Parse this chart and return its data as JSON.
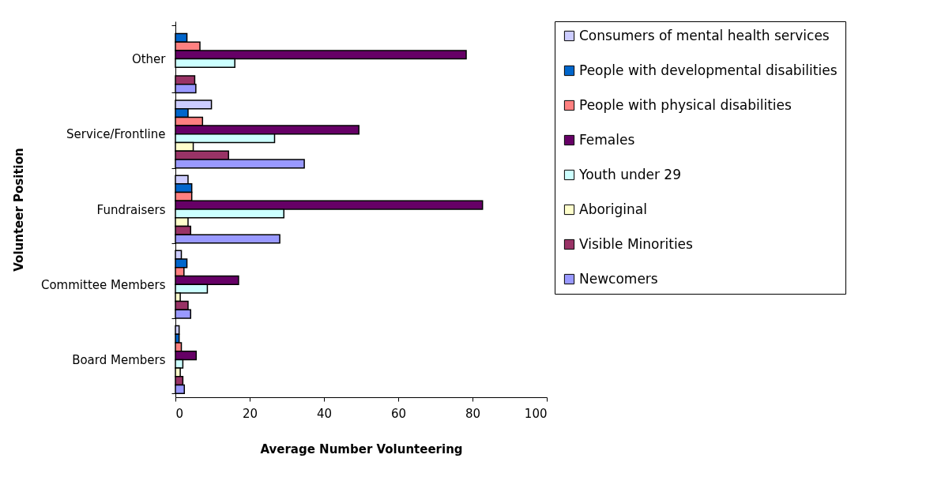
{
  "chart_data": {
    "type": "bar",
    "orientation": "horizontal",
    "xlabel": "Average Number Volunteering",
    "ylabel": "Volunteer Position",
    "categories": [
      "Other",
      "Service/Frontline",
      "Fundraisers",
      "Committee Members",
      "Board Members"
    ],
    "series": [
      {
        "name": "Consumers of mental health services",
        "color": "#ccccff",
        "values": [
          null,
          9.7,
          3.4,
          1.6,
          1.0
        ]
      },
      {
        "name": "People with developmental disabilities",
        "color": "#0066cc",
        "values": [
          3.1,
          3.4,
          4.4,
          3.1,
          1.0
        ]
      },
      {
        "name": "People with physical disabilities",
        "color": "#ff8080",
        "values": [
          6.6,
          7.3,
          4.4,
          2.3,
          1.6
        ]
      },
      {
        "name": "Females",
        "color": "#660066",
        "values": [
          78.3,
          49.4,
          82.7,
          17.0,
          5.6
        ]
      },
      {
        "name": "Youth under 29",
        "color": "#ccffff",
        "values": [
          16.0,
          26.7,
          29.2,
          8.6,
          2.0
        ]
      },
      {
        "name": "Aboriginal",
        "color": "#ffffcc",
        "values": [
          null,
          4.8,
          3.4,
          1.3,
          1.3
        ]
      },
      {
        "name": "Visible Minorities",
        "color": "#993366",
        "values": [
          5.2,
          14.3,
          4.1,
          3.4,
          2.0
        ]
      },
      {
        "name": "Newcomers",
        "color": "#9999ff",
        "values": [
          5.5,
          34.7,
          28.1,
          4.1,
          2.4
        ]
      }
    ],
    "xlim": [
      0,
      100
    ],
    "xticks": [
      0,
      20,
      40,
      60,
      80,
      100
    ],
    "grid": false,
    "legend": "right"
  }
}
